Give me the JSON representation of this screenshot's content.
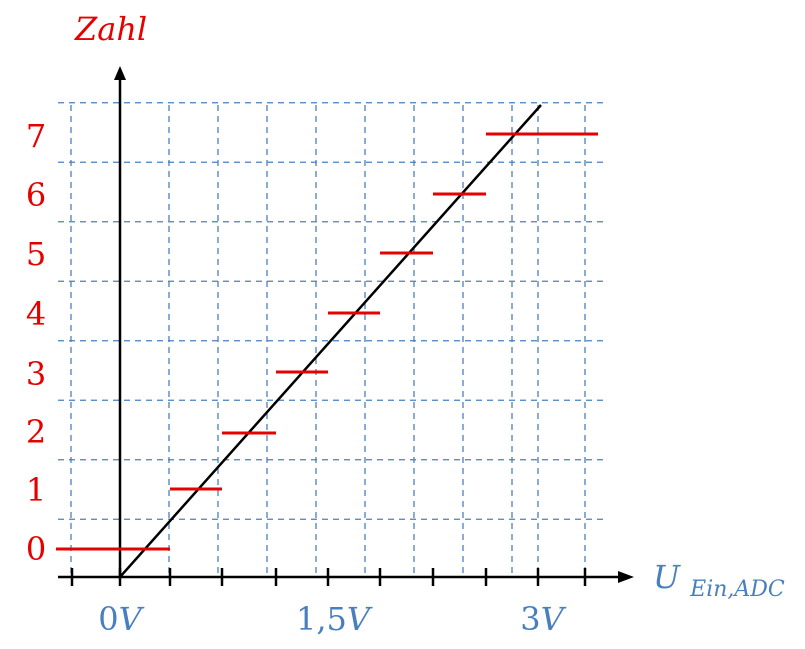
{
  "chart_data": {
    "type": "line",
    "ylabel": "Zahl",
    "xlabel_main": "U",
    "xlabel_sub": "Ein,ADC",
    "x_tick_labels": [
      {
        "x": 0,
        "label": "0V"
      },
      {
        "x": 1.5,
        "label": "1,5V"
      },
      {
        "x": 3,
        "label": "3V"
      }
    ],
    "y_tick_labels": [
      "0",
      "1",
      "2",
      "3",
      "4",
      "5",
      "6",
      "7"
    ],
    "xlim": [
      -0.3,
      3.3
    ],
    "ylim": [
      -0.5,
      7.5
    ],
    "grid": true,
    "series": [
      {
        "kind": "ideal",
        "points": [
          [
            0,
            -0.5
          ],
          [
            2.7,
            7.5
          ]
        ]
      },
      {
        "kind": "steps",
        "steps": [
          {
            "x0": -0.45,
            "x1": 0.3,
            "y": 0
          },
          {
            "x0": 0.3,
            "x1": 0.65,
            "y": 1
          },
          {
            "x0": 0.65,
            "x1": 1.0,
            "y": 2
          },
          {
            "x0": 1.0,
            "x1": 1.35,
            "y": 3
          },
          {
            "x0": 1.35,
            "x1": 1.7,
            "y": 4
          },
          {
            "x0": 1.7,
            "x1": 2.05,
            "y": 5
          },
          {
            "x0": 2.05,
            "x1": 2.4,
            "y": 6
          },
          {
            "x0": 2.4,
            "x1": 3.15,
            "y": 7
          }
        ]
      }
    ],
    "colors": {
      "axis": "#000000",
      "grid": "#4a7fbf",
      "ideal_line": "#000000",
      "steps": "#e60000",
      "x_ticks_text": "#4a7fbf",
      "y_ticks_text": "#e60000",
      "ylabel": "#e60000",
      "xlabel": "#4a7fbf"
    }
  }
}
